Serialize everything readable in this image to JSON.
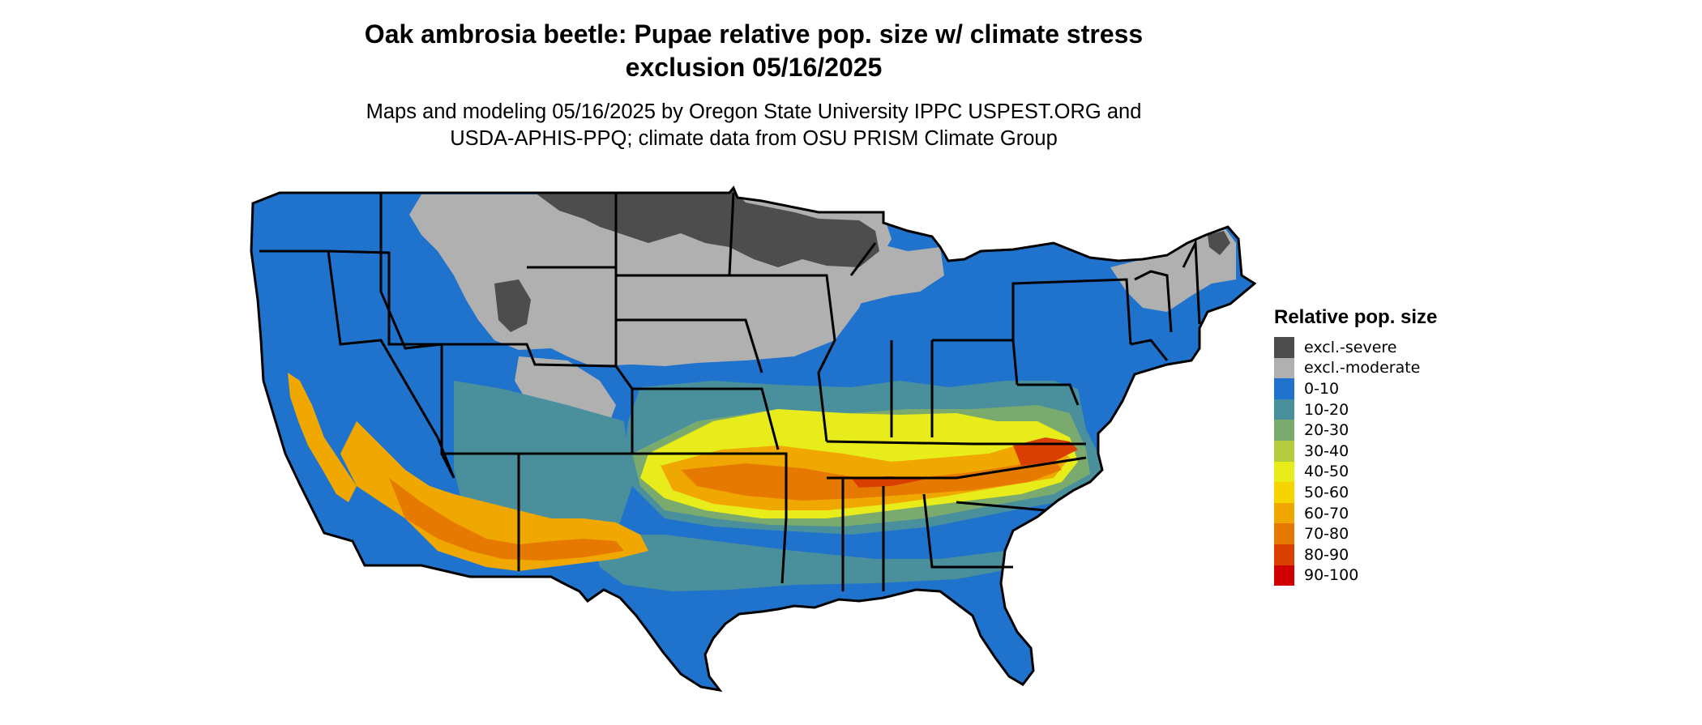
{
  "title_line1": "Oak ambrosia beetle: Pupae relative pop. size w/ climate stress",
  "title_line2": "exclusion 05/16/2025",
  "subtitle_line1": "Maps and modeling 05/16/2025 by Oregon State University IPPC USPEST.ORG and",
  "subtitle_line2": "USDA-APHIS-PPQ; climate data from OSU PRISM Climate Group",
  "legend": {
    "title": "Relative pop. size",
    "items": [
      {
        "label": "excl.-severe",
        "color": "#4d4d4d"
      },
      {
        "label": "excl.-moderate",
        "color": "#b0b0b0"
      },
      {
        "label": "0-10",
        "color": "#1f73cc"
      },
      {
        "label": "10-20",
        "color": "#4a8f9c"
      },
      {
        "label": "20-30",
        "color": "#7aaa6e"
      },
      {
        "label": "30-40",
        "color": "#b3cc3e"
      },
      {
        "label": "40-50",
        "color": "#e8ec1a"
      },
      {
        "label": "50-60",
        "color": "#f5d400"
      },
      {
        "label": "60-70",
        "color": "#f0a800"
      },
      {
        "label": "70-80",
        "color": "#e67a00"
      },
      {
        "label": "80-90",
        "color": "#d94000"
      },
      {
        "label": "90-100",
        "color": "#d10000"
      }
    ]
  },
  "map": {
    "region": "Contiguous United States",
    "state_borders": true,
    "border_color": "#000000"
  }
}
